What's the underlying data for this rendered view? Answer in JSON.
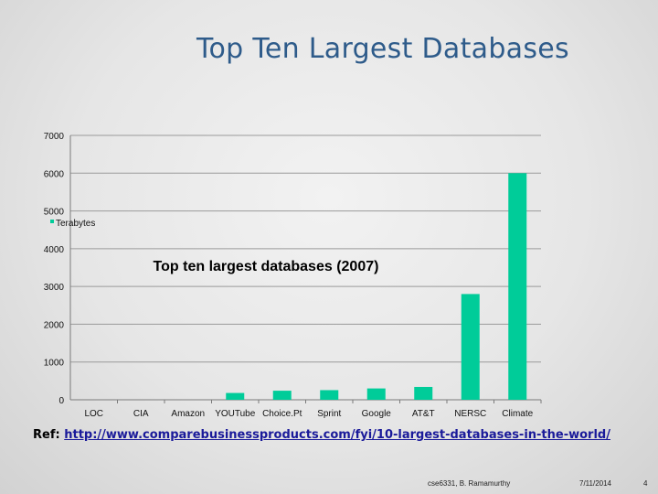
{
  "slide": {
    "title": "Top Ten Largest Databases",
    "ref_prefix": "Ref: ",
    "ref_link": "http://www.comparebusinessproducts.com/fyi/10-largest-databases-in-the-world/",
    "footer_course": "cse6331, B. Ramamurthy",
    "footer_date": "7/11/2014",
    "footer_page": "4"
  },
  "colors": {
    "bar": "#00cc99",
    "title": "#2e5b8a",
    "axis": "#888888"
  },
  "chart_data": {
    "type": "bar",
    "title": "Top ten largest databases (2007)",
    "categories": [
      "LOC",
      "CIA",
      "Amazon",
      "YOUTube",
      "Choice.Pt",
      "Sprint",
      "Google",
      "AT&T",
      "NERSC",
      "Climate"
    ],
    "series": [
      {
        "name": "Terabytes",
        "values": [
          0,
          0,
          0,
          180,
          240,
          255,
          300,
          340,
          2800,
          6000
        ]
      }
    ],
    "ylim": [
      0,
      7000
    ],
    "yticks": [
      0,
      1000,
      2000,
      3000,
      4000,
      5000,
      6000,
      7000
    ],
    "grid": true,
    "legend": "upper-left"
  }
}
